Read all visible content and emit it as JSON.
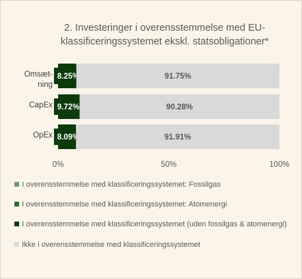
{
  "chart_data": {
    "type": "stacked-bar-horizontal",
    "title": "2. Investeringer i overensstemmelse med EU-klassificeringssystemet ekskl. statsobligationer*",
    "categories": [
      "Omsæt-ning",
      "CapEx",
      "OpEx"
    ],
    "series": [
      {
        "name": "I overensstemmelse med klassificeringssystemet: Fossilgas",
        "color": "#6f9a6f",
        "values": [
          0,
          0,
          0
        ]
      },
      {
        "name": "I overensstemmelse med klassificeringssystemet: Atomenergi",
        "color": "#2f6f2f",
        "values": [
          0,
          0,
          0
        ]
      },
      {
        "name": "I overensstemmelse med klassificeringssystemet (uden fossilgas & atomenergi)",
        "color": "#0b3a0b",
        "values": [
          8.25,
          9.72,
          8.09
        ],
        "value_labels": [
          "8.25%",
          "9.72%",
          "8.09%"
        ]
      },
      {
        "name": "Ikke i overensstemmelse med klassificeringssystemet",
        "color": "#d9d9d9",
        "values": [
          91.75,
          90.28,
          91.91
        ],
        "value_labels": [
          "91.75%",
          "90.28%",
          "91.91%"
        ]
      }
    ],
    "xlim": [
      0,
      100
    ],
    "xticks": [
      {
        "value": 0,
        "label": "0%"
      },
      {
        "value": 50,
        "label": "50%"
      },
      {
        "value": 100,
        "label": "100%"
      }
    ],
    "legend": "bottom"
  }
}
